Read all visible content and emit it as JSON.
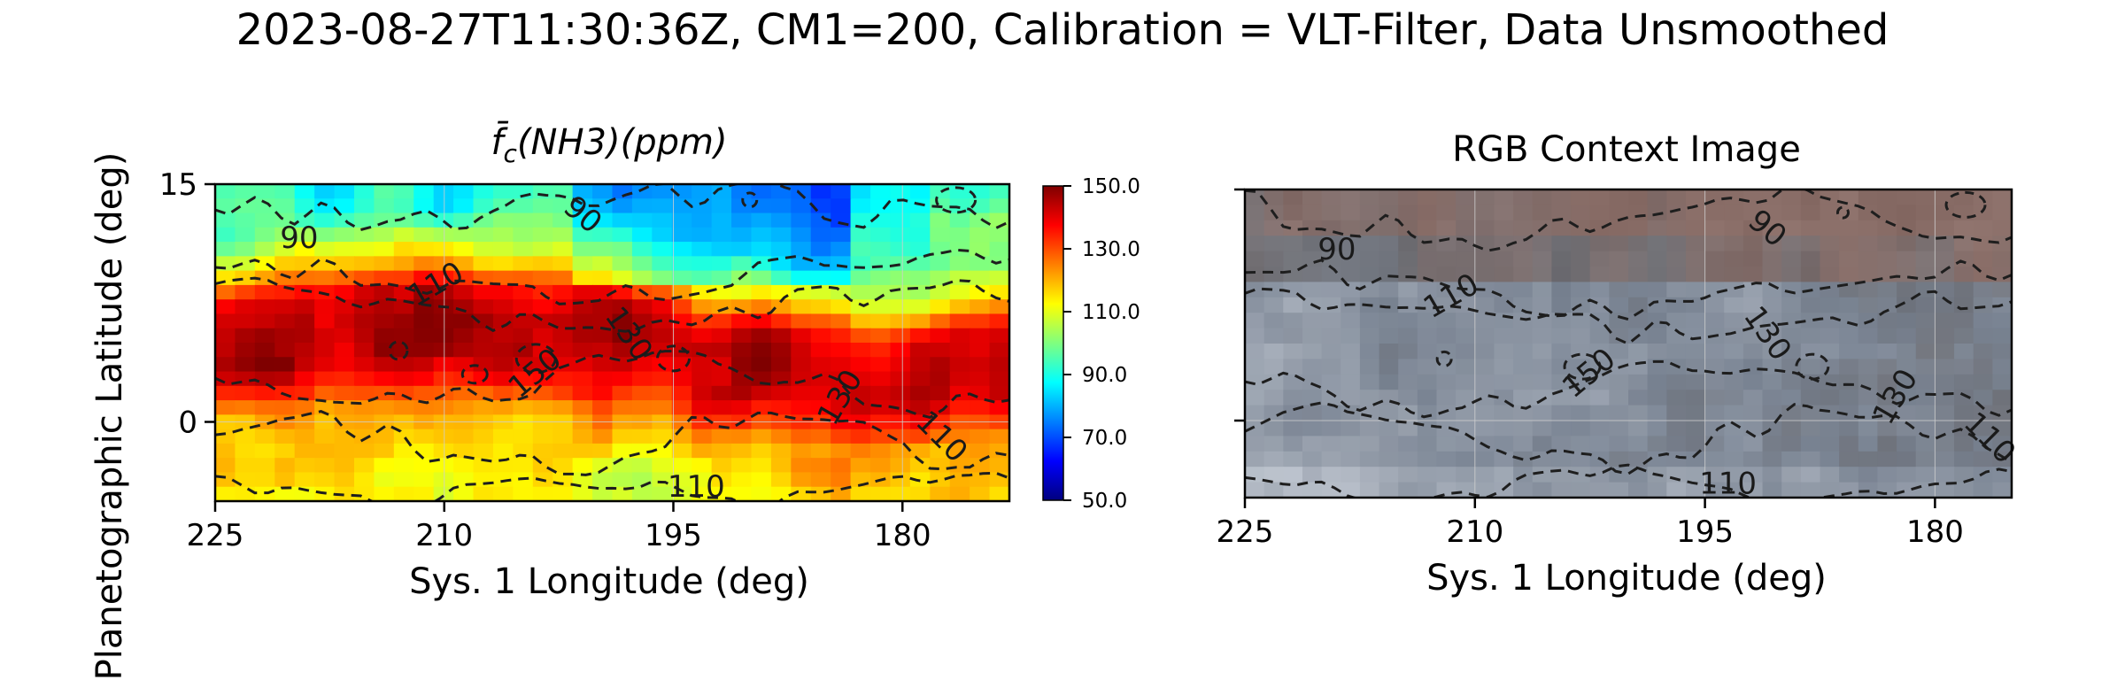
{
  "figure": {
    "title": "2023-08-27T11:30:36Z, CM1=200, Calibration = VLT-Filter, Data Unsmoothed",
    "ylabel": "Planetographic Latitude (deg)"
  },
  "colors": {
    "jet": [
      "#00007f",
      "#0000ff",
      "#007fff",
      "#00ffff",
      "#7fff7f",
      "#ffff00",
      "#ff7f00",
      "#ff0000",
      "#7f0000"
    ],
    "contour": "#1e1e1e",
    "rgb_stops": [
      "#c8cfd8",
      "#9ea6b2",
      "#7d8796",
      "#6e6f75",
      "#8a6e68"
    ]
  },
  "panels": {
    "left": {
      "title_base": "f̄",
      "title_sub": "c",
      "title_rest": "(NH3)(ppm)",
      "xlabel": "Sys. 1 Longitude (deg)"
    },
    "right": {
      "title": "RGB Context Image",
      "xlabel": "Sys. 1 Longitude (deg)"
    },
    "colorbar": {
      "ticks": [
        "150.0",
        "130.0",
        "110.0",
        "90.0",
        "70.0",
        "50.0"
      ]
    }
  },
  "chart_data": [
    {
      "type": "heatmap",
      "title": "f̄c(NH3)(ppm)",
      "xlabel": "Sys. 1 Longitude (deg)",
      "ylabel": "Planetographic Latitude (deg)",
      "xlim": [
        225,
        173
      ],
      "ylim": [
        -5,
        15
      ],
      "xticks": [
        225,
        210,
        195,
        180
      ],
      "yticks": [
        0,
        15
      ],
      "colormap": "jet",
      "clim": [
        50,
        150
      ],
      "colorbar_ticks": [
        150,
        130,
        110,
        90,
        70,
        50
      ],
      "grid": true,
      "field_profile": {
        "latitude_deg": [
          15,
          12,
          9,
          7,
          5,
          3,
          1,
          0,
          -2,
          -5
        ],
        "ammonia_ppm": [
          88,
          92,
          115,
          140,
          146,
          144,
          132,
          122,
          116,
          112
        ]
      },
      "contour_levels": [
        90,
        110,
        130,
        150
      ],
      "contour_labels": [
        {
          "text": "90",
          "lon": 219.5,
          "lat": 11.5
        },
        {
          "text": "90",
          "lon": 201.0,
          "lat": 13.0
        },
        {
          "text": "110",
          "lon": 210.5,
          "lat": 8.6
        },
        {
          "text": "130",
          "lon": 198.0,
          "lat": 5.5
        },
        {
          "text": "150",
          "lon": 204.0,
          "lat": 3.0
        },
        {
          "text": "130",
          "lon": 184.0,
          "lat": 1.5
        },
        {
          "text": "110",
          "lon": 177.5,
          "lat": -1.0
        },
        {
          "text": "110",
          "lon": 193.5,
          "lat": -4.2
        }
      ]
    },
    {
      "type": "heatmap",
      "title": "RGB Context Image",
      "xlabel": "Sys. 1 Longitude (deg)",
      "xlim": [
        225,
        175
      ],
      "ylim": [
        -5,
        15
      ],
      "xticks": [
        225,
        210,
        195,
        180
      ],
      "grid": true,
      "contour_levels": [
        90,
        110,
        130,
        150
      ],
      "contour_labels": [
        {
          "text": "90",
          "lon": 219.0,
          "lat": 11.0
        },
        {
          "text": "90",
          "lon": 191.0,
          "lat": 12.4
        },
        {
          "text": "110",
          "lon": 211.5,
          "lat": 8.0
        },
        {
          "text": "130",
          "lon": 191.0,
          "lat": 5.6
        },
        {
          "text": "150",
          "lon": 202.5,
          "lat": 3.0
        },
        {
          "text": "130",
          "lon": 182.5,
          "lat": 1.5
        },
        {
          "text": "110",
          "lon": 176.5,
          "lat": -1.2
        },
        {
          "text": "110",
          "lon": 193.5,
          "lat": -4.2
        }
      ]
    }
  ]
}
